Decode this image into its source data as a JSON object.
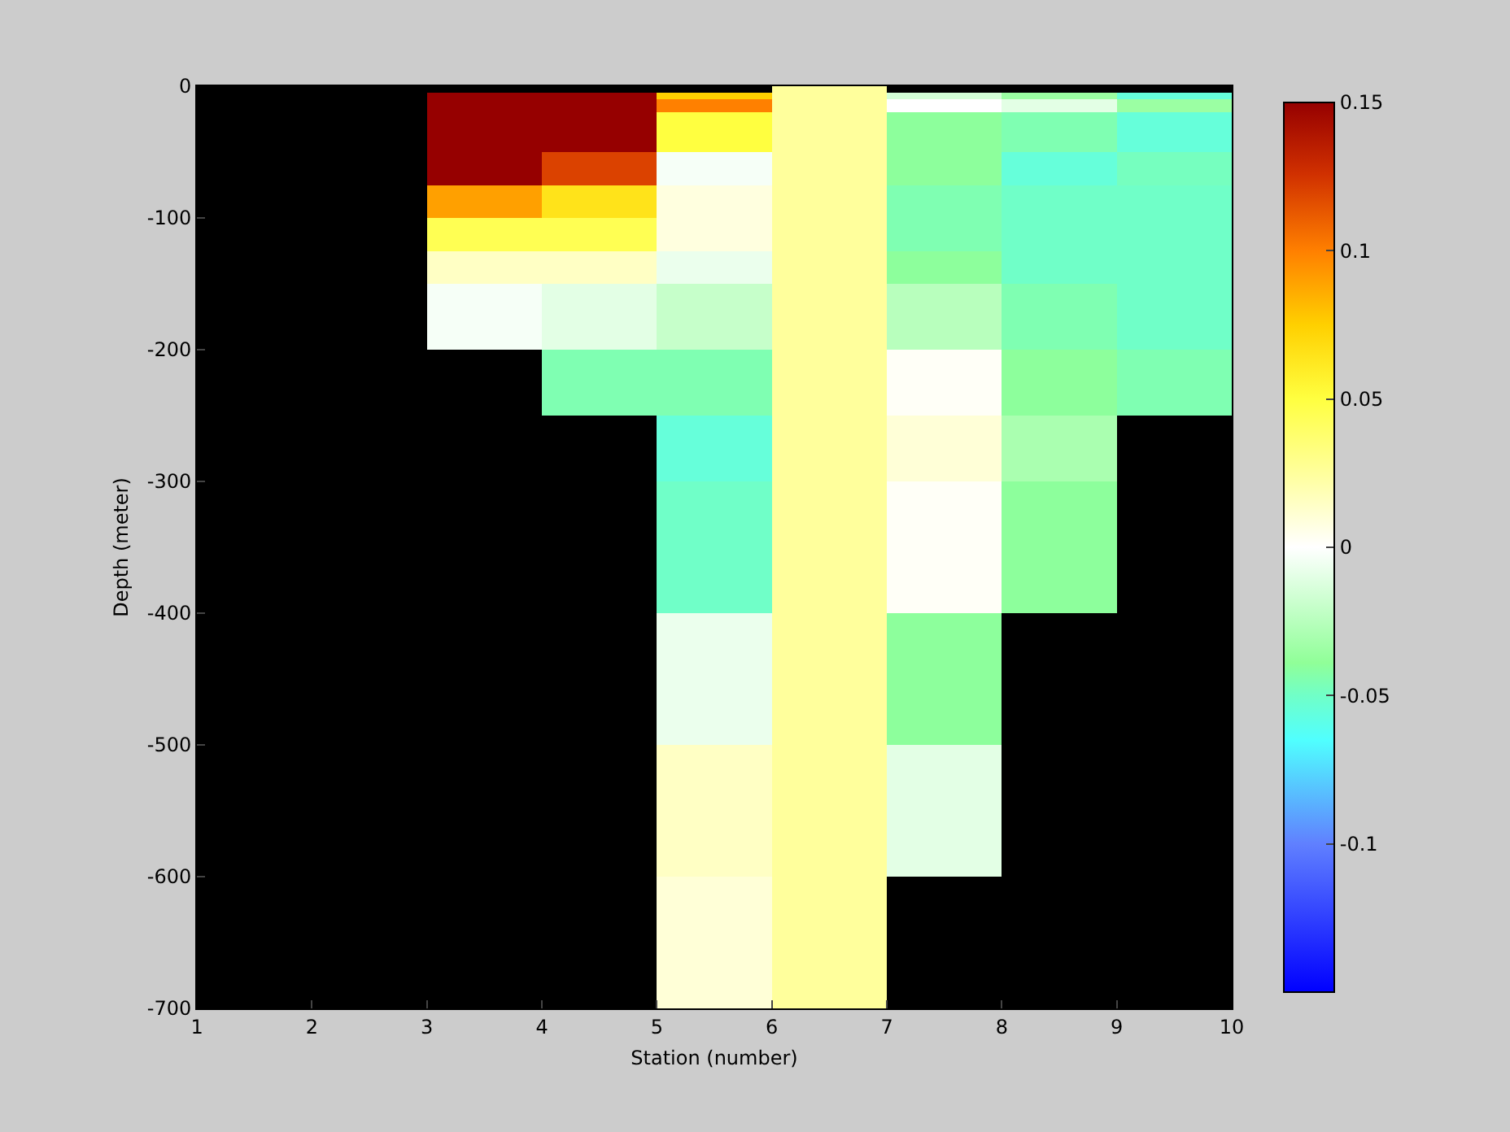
{
  "chart_data": {
    "type": "heatmap",
    "xlabel": "Station (number)",
    "ylabel": "Depth (meter)",
    "cells": [
      [
        null,
        null,
        null,
        null,
        null,
        0.025,
        null,
        null,
        null
      ],
      [
        null,
        null,
        0.15,
        0.15,
        0.075,
        0.025,
        -0.015,
        -0.035,
        -0.055
      ],
      [
        null,
        null,
        0.15,
        0.15,
        0.1,
        0.025,
        0,
        -0.01,
        -0.035
      ],
      [
        null,
        null,
        0.15,
        0.15,
        0.1,
        0.025,
        0,
        -0.01,
        -0.035
      ],
      [
        null,
        null,
        0.15,
        0.15,
        0.05,
        0.025,
        -0.04,
        -0.045,
        -0.055
      ],
      [
        null,
        null,
        0.15,
        0.15,
        0.05,
        0.025,
        -0.04,
        -0.045,
        -0.055
      ],
      [
        null,
        null,
        0.15,
        0.15,
        0.05,
        0.025,
        -0.04,
        -0.045,
        -0.055
      ],
      [
        null,
        null,
        0.15,
        0.15,
        0.05,
        0.025,
        -0.04,
        -0.045,
        -0.055
      ],
      [
        null,
        null,
        0.15,
        0.15,
        0.05,
        0.025,
        -0.04,
        -0.045,
        -0.055
      ],
      [
        null,
        null,
        0.15,
        0.15,
        0.05,
        0.025,
        -0.04,
        -0.045,
        -0.055
      ],
      [
        null,
        null,
        0.15,
        0.12,
        -0.003,
        0.025,
        -0.04,
        -0.055,
        -0.048
      ],
      [
        null,
        null,
        0.15,
        0.12,
        -0.003,
        0.025,
        -0.04,
        -0.055,
        -0.048
      ],
      [
        null,
        null,
        0.15,
        0.12,
        -0.003,
        0.025,
        -0.04,
        -0.055,
        -0.048
      ],
      [
        null,
        null,
        0.15,
        0.12,
        -0.003,
        0.025,
        -0.04,
        -0.055,
        -0.048
      ],
      [
        null,
        null,
        0.15,
        0.12,
        -0.003,
        0.025,
        -0.04,
        -0.055,
        -0.048
      ],
      [
        null,
        null,
        0.09,
        0.065,
        0.008,
        0.025,
        -0.045,
        -0.05,
        -0.05
      ],
      [
        null,
        null,
        0.09,
        0.065,
        0.008,
        0.025,
        -0.045,
        -0.05,
        -0.05
      ],
      [
        null,
        null,
        0.09,
        0.065,
        0.008,
        0.025,
        -0.045,
        -0.05,
        -0.05
      ],
      [
        null,
        null,
        0.09,
        0.065,
        0.008,
        0.025,
        -0.045,
        -0.05,
        -0.05
      ],
      [
        null,
        null,
        0.09,
        0.065,
        0.008,
        0.025,
        -0.045,
        -0.05,
        -0.05
      ],
      [
        null,
        null,
        0.045,
        0.045,
        0.008,
        0.025,
        -0.045,
        -0.05,
        -0.05
      ],
      [
        null,
        null,
        0.045,
        0.045,
        0.008,
        0.025,
        -0.045,
        -0.05,
        -0.05
      ],
      [
        null,
        null,
        0.045,
        0.045,
        0.008,
        0.025,
        -0.045,
        -0.05,
        -0.05
      ],
      [
        null,
        null,
        0.045,
        0.045,
        0.008,
        0.025,
        -0.045,
        -0.05,
        -0.05
      ],
      [
        null,
        null,
        0.045,
        0.045,
        0.008,
        0.025,
        -0.045,
        -0.05,
        -0.05
      ],
      [
        null,
        null,
        0.015,
        0.015,
        -0.007,
        0.025,
        -0.04,
        -0.05,
        -0.05
      ],
      [
        null,
        null,
        0.015,
        0.015,
        -0.007,
        0.025,
        -0.04,
        -0.05,
        -0.05
      ],
      [
        null,
        null,
        0.015,
        0.015,
        -0.007,
        0.025,
        -0.04,
        -0.05,
        -0.05
      ],
      [
        null,
        null,
        0.015,
        0.015,
        -0.007,
        0.025,
        -0.04,
        -0.05,
        -0.05
      ],
      [
        null,
        null,
        0.015,
        0.015,
        -0.007,
        0.025,
        -0.04,
        -0.05,
        -0.05
      ],
      [
        null,
        null,
        -0.003,
        -0.01,
        -0.02,
        0.025,
        -0.025,
        -0.045,
        -0.05
      ],
      [
        null,
        null,
        -0.003,
        -0.01,
        -0.02,
        0.025,
        -0.025,
        -0.045,
        -0.05
      ],
      [
        null,
        null,
        -0.003,
        -0.01,
        -0.02,
        0.025,
        -0.025,
        -0.045,
        -0.05
      ],
      [
        null,
        null,
        -0.003,
        -0.01,
        -0.02,
        0.025,
        -0.025,
        -0.045,
        -0.05
      ],
      [
        null,
        null,
        -0.003,
        -0.01,
        -0.02,
        0.025,
        -0.025,
        -0.045,
        -0.05
      ],
      [
        null,
        null,
        -0.003,
        -0.01,
        -0.02,
        0.025,
        -0.025,
        -0.045,
        -0.05
      ],
      [
        null,
        null,
        -0.003,
        -0.01,
        -0.02,
        0.025,
        -0.025,
        -0.045,
        -0.05
      ],
      [
        null,
        null,
        -0.003,
        -0.01,
        -0.02,
        0.025,
        -0.025,
        -0.045,
        -0.05
      ],
      [
        null,
        null,
        -0.003,
        -0.01,
        -0.02,
        0.025,
        -0.025,
        -0.045,
        -0.05
      ],
      [
        null,
        null,
        -0.003,
        -0.01,
        -0.02,
        0.025,
        -0.025,
        -0.045,
        -0.05
      ],
      [
        null,
        null,
        null,
        -0.045,
        -0.045,
        0.025,
        0.002,
        -0.04,
        -0.045
      ],
      [
        null,
        null,
        null,
        -0.045,
        -0.045,
        0.025,
        0.002,
        -0.04,
        -0.045
      ],
      [
        null,
        null,
        null,
        -0.045,
        -0.045,
        0.025,
        0.002,
        -0.04,
        -0.045
      ],
      [
        null,
        null,
        null,
        -0.045,
        -0.045,
        0.025,
        0.002,
        -0.04,
        -0.045
      ],
      [
        null,
        null,
        null,
        -0.045,
        -0.045,
        0.025,
        0.002,
        -0.04,
        -0.045
      ],
      [
        null,
        null,
        null,
        -0.045,
        -0.045,
        0.025,
        0.002,
        -0.04,
        -0.045
      ],
      [
        null,
        null,
        null,
        -0.045,
        -0.045,
        0.025,
        0.002,
        -0.04,
        -0.045
      ],
      [
        null,
        null,
        null,
        -0.045,
        -0.045,
        0.025,
        0.002,
        -0.04,
        -0.045
      ],
      [
        null,
        null,
        null,
        -0.045,
        -0.045,
        0.025,
        0.002,
        -0.04,
        -0.045
      ],
      [
        null,
        null,
        null,
        -0.045,
        -0.045,
        0.025,
        0.002,
        -0.04,
        -0.045
      ],
      [
        null,
        null,
        null,
        null,
        -0.055,
        0.025,
        0.01,
        -0.03,
        null
      ],
      [
        null,
        null,
        null,
        null,
        -0.055,
        0.025,
        0.01,
        -0.03,
        null
      ],
      [
        null,
        null,
        null,
        null,
        -0.055,
        0.025,
        0.01,
        -0.03,
        null
      ],
      [
        null,
        null,
        null,
        null,
        -0.055,
        0.025,
        0.01,
        -0.03,
        null
      ],
      [
        null,
        null,
        null,
        null,
        -0.055,
        0.025,
        0.01,
        -0.03,
        null
      ],
      [
        null,
        null,
        null,
        null,
        -0.055,
        0.025,
        0.01,
        -0.03,
        null
      ],
      [
        null,
        null,
        null,
        null,
        -0.055,
        0.025,
        0.01,
        -0.03,
        null
      ],
      [
        null,
        null,
        null,
        null,
        -0.055,
        0.025,
        0.01,
        -0.03,
        null
      ],
      [
        null,
        null,
        null,
        null,
        -0.055,
        0.025,
        0.01,
        -0.03,
        null
      ],
      [
        null,
        null,
        null,
        null,
        -0.055,
        0.025,
        0.01,
        -0.03,
        null
      ],
      [
        null,
        null,
        null,
        null,
        -0.05,
        0.025,
        0.002,
        -0.04,
        null
      ],
      [
        null,
        null,
        null,
        null,
        -0.05,
        0.025,
        0.002,
        -0.04,
        null
      ],
      [
        null,
        null,
        null,
        null,
        -0.05,
        0.025,
        0.002,
        -0.04,
        null
      ],
      [
        null,
        null,
        null,
        null,
        -0.05,
        0.025,
        0.002,
        -0.04,
        null
      ],
      [
        null,
        null,
        null,
        null,
        -0.05,
        0.025,
        0.002,
        -0.04,
        null
      ],
      [
        null,
        null,
        null,
        null,
        -0.05,
        0.025,
        0.002,
        -0.04,
        null
      ],
      [
        null,
        null,
        null,
        null,
        -0.05,
        0.025,
        0.002,
        -0.04,
        null
      ],
      [
        null,
        null,
        null,
        null,
        -0.05,
        0.025,
        0.002,
        -0.04,
        null
      ],
      [
        null,
        null,
        null,
        null,
        -0.05,
        0.025,
        0.002,
        -0.04,
        null
      ],
      [
        null,
        null,
        null,
        null,
        -0.05,
        0.025,
        0.002,
        -0.04,
        null
      ],
      [
        null,
        null,
        null,
        null,
        -0.05,
        0.025,
        0.002,
        -0.04,
        null
      ],
      [
        null,
        null,
        null,
        null,
        -0.05,
        0.025,
        0.002,
        -0.04,
        null
      ],
      [
        null,
        null,
        null,
        null,
        -0.05,
        0.025,
        0.002,
        -0.04,
        null
      ],
      [
        null,
        null,
        null,
        null,
        -0.05,
        0.025,
        0.002,
        -0.04,
        null
      ],
      [
        null,
        null,
        null,
        null,
        -0.05,
        0.025,
        0.002,
        -0.04,
        null
      ],
      [
        null,
        null,
        null,
        null,
        -0.05,
        0.025,
        0.002,
        -0.04,
        null
      ],
      [
        null,
        null,
        null,
        null,
        -0.05,
        0.025,
        0.002,
        -0.04,
        null
      ],
      [
        null,
        null,
        null,
        null,
        -0.05,
        0.025,
        0.002,
        -0.04,
        null
      ],
      [
        null,
        null,
        null,
        null,
        -0.05,
        0.025,
        0.002,
        -0.04,
        null
      ],
      [
        null,
        null,
        null,
        null,
        -0.05,
        0.025,
        0.002,
        -0.04,
        null
      ],
      [
        null,
        null,
        null,
        null,
        -0.007,
        0.025,
        -0.04,
        null,
        null
      ],
      [
        null,
        null,
        null,
        null,
        -0.007,
        0.025,
        -0.04,
        null,
        null
      ],
      [
        null,
        null,
        null,
        null,
        -0.007,
        0.025,
        -0.04,
        null,
        null
      ],
      [
        null,
        null,
        null,
        null,
        -0.007,
        0.025,
        -0.04,
        null,
        null
      ],
      [
        null,
        null,
        null,
        null,
        -0.007,
        0.025,
        -0.04,
        null,
        null
      ],
      [
        null,
        null,
        null,
        null,
        -0.007,
        0.025,
        -0.04,
        null,
        null
      ],
      [
        null,
        null,
        null,
        null,
        -0.007,
        0.025,
        -0.04,
        null,
        null
      ],
      [
        null,
        null,
        null,
        null,
        -0.007,
        0.025,
        -0.04,
        null,
        null
      ],
      [
        null,
        null,
        null,
        null,
        -0.007,
        0.025,
        -0.04,
        null,
        null
      ],
      [
        null,
        null,
        null,
        null,
        -0.007,
        0.025,
        -0.04,
        null,
        null
      ],
      [
        null,
        null,
        null,
        null,
        -0.007,
        0.025,
        -0.04,
        null,
        null
      ],
      [
        null,
        null,
        null,
        null,
        -0.007,
        0.025,
        -0.04,
        null,
        null
      ],
      [
        null,
        null,
        null,
        null,
        -0.007,
        0.025,
        -0.04,
        null,
        null
      ],
      [
        null,
        null,
        null,
        null,
        -0.007,
        0.025,
        -0.04,
        null,
        null
      ],
      [
        null,
        null,
        null,
        null,
        -0.007,
        0.025,
        -0.04,
        null,
        null
      ],
      [
        null,
        null,
        null,
        null,
        -0.007,
        0.025,
        -0.04,
        null,
        null
      ],
      [
        null,
        null,
        null,
        null,
        -0.007,
        0.025,
        -0.04,
        null,
        null
      ],
      [
        null,
        null,
        null,
        null,
        -0.007,
        0.025,
        -0.04,
        null,
        null
      ],
      [
        null,
        null,
        null,
        null,
        -0.007,
        0.025,
        -0.04,
        null,
        null
      ],
      [
        null,
        null,
        null,
        null,
        -0.007,
        0.025,
        -0.04,
        null,
        null
      ],
      [
        null,
        null,
        null,
        null,
        0.015,
        0.025,
        -0.01,
        null,
        null
      ],
      [
        null,
        null,
        null,
        null,
        0.015,
        0.025,
        -0.01,
        null,
        null
      ],
      [
        null,
        null,
        null,
        null,
        0.015,
        0.025,
        -0.01,
        null,
        null
      ],
      [
        null,
        null,
        null,
        null,
        0.015,
        0.025,
        -0.01,
        null,
        null
      ],
      [
        null,
        null,
        null,
        null,
        0.015,
        0.025,
        -0.01,
        null,
        null
      ],
      [
        null,
        null,
        null,
        null,
        0.015,
        0.025,
        -0.01,
        null,
        null
      ],
      [
        null,
        null,
        null,
        null,
        0.015,
        0.025,
        -0.01,
        null,
        null
      ],
      [
        null,
        null,
        null,
        null,
        0.015,
        0.025,
        -0.01,
        null,
        null
      ],
      [
        null,
        null,
        null,
        null,
        0.015,
        0.025,
        -0.01,
        null,
        null
      ],
      [
        null,
        null,
        null,
        null,
        0.015,
        0.025,
        -0.01,
        null,
        null
      ],
      [
        null,
        null,
        null,
        null,
        0.015,
        0.025,
        -0.01,
        null,
        null
      ],
      [
        null,
        null,
        null,
        null,
        0.015,
        0.025,
        -0.01,
        null,
        null
      ],
      [
        null,
        null,
        null,
        null,
        0.015,
        0.025,
        -0.01,
        null,
        null
      ],
      [
        null,
        null,
        null,
        null,
        0.015,
        0.025,
        -0.01,
        null,
        null
      ],
      [
        null,
        null,
        null,
        null,
        0.015,
        0.025,
        -0.01,
        null,
        null
      ],
      [
        null,
        null,
        null,
        null,
        0.015,
        0.025,
        -0.01,
        null,
        null
      ],
      [
        null,
        null,
        null,
        null,
        0.015,
        0.025,
        -0.01,
        null,
        null
      ],
      [
        null,
        null,
        null,
        null,
        0.015,
        0.025,
        -0.01,
        null,
        null
      ],
      [
        null,
        null,
        null,
        null,
        0.015,
        0.025,
        -0.01,
        null,
        null
      ],
      [
        null,
        null,
        null,
        null,
        0.015,
        0.025,
        -0.01,
        null,
        null
      ],
      [
        null,
        null,
        null,
        null,
        0.01,
        0.025,
        null,
        null,
        null
      ],
      [
        null,
        null,
        null,
        null,
        0.01,
        0.025,
        null,
        null,
        null
      ],
      [
        null,
        null,
        null,
        null,
        0.01,
        0.025,
        null,
        null,
        null
      ],
      [
        null,
        null,
        null,
        null,
        0.01,
        0.025,
        null,
        null,
        null
      ],
      [
        null,
        null,
        null,
        null,
        0.01,
        0.025,
        null,
        null,
        null
      ],
      [
        null,
        null,
        null,
        null,
        0.01,
        0.025,
        null,
        null,
        null
      ],
      [
        null,
        null,
        null,
        null,
        0.01,
        0.025,
        null,
        null,
        null
      ],
      [
        null,
        null,
        null,
        null,
        0.01,
        0.025,
        null,
        null,
        null
      ],
      [
        null,
        null,
        null,
        null,
        0.01,
        0.025,
        null,
        null,
        null
      ],
      [
        null,
        null,
        null,
        null,
        0.01,
        0.025,
        null,
        null,
        null
      ],
      [
        null,
        null,
        null,
        null,
        0.01,
        0.025,
        null,
        null,
        null
      ],
      [
        null,
        null,
        null,
        null,
        0.01,
        0.025,
        null,
        null,
        null
      ],
      [
        null,
        null,
        null,
        null,
        0.01,
        0.025,
        null,
        null,
        null
      ],
      [
        null,
        null,
        null,
        null,
        0.01,
        0.025,
        null,
        null,
        null
      ],
      [
        null,
        null,
        null,
        null,
        0.01,
        0.025,
        null,
        null,
        null
      ],
      [
        null,
        null,
        null,
        null,
        0.01,
        0.025,
        null,
        null,
        null
      ],
      [
        null,
        null,
        null,
        null,
        0.01,
        0.025,
        null,
        null,
        null
      ],
      [
        null,
        null,
        null,
        null,
        0.01,
        0.025,
        null,
        null,
        null
      ],
      [
        null,
        null,
        null,
        null,
        0.01,
        0.025,
        null,
        null,
        null
      ],
      [
        null,
        null,
        null,
        null,
        0.01,
        0.025,
        null,
        null,
        null
      ]
    ],
    "xlim": [
      1,
      10
    ],
    "xticks": [
      1,
      2,
      3,
      4,
      5,
      6,
      7,
      8,
      9,
      10
    ],
    "ylim": [
      -700,
      0
    ],
    "yticks": [
      -700,
      -600,
      -500,
      -400,
      -300,
      -200,
      -100,
      0
    ],
    "clim": [
      -0.15,
      0.15
    ],
    "cticks": [
      -0.1,
      -0.05,
      0,
      0.05,
      0.1,
      0.15
    ]
  }
}
